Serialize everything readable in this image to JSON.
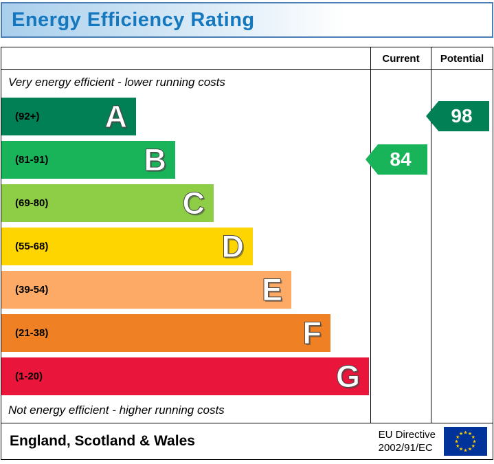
{
  "header": {
    "title": "Energy Efficiency Rating"
  },
  "table": {
    "current_label": "Current",
    "potential_label": "Potential",
    "top_note": "Very energy efficient - lower running costs",
    "bottom_note": "Not energy efficient - higher running costs"
  },
  "bands": [
    {
      "letter": "A",
      "range": "(92+)",
      "color": "#008054"
    },
    {
      "letter": "B",
      "range": "(81-91)",
      "color": "#19b459"
    },
    {
      "letter": "C",
      "range": "(69-80)",
      "color": "#8dce46"
    },
    {
      "letter": "D",
      "range": "(55-68)",
      "color": "#ffd500"
    },
    {
      "letter": "E",
      "range": "(39-54)",
      "color": "#fcaa65"
    },
    {
      "letter": "F",
      "range": "(21-38)",
      "color": "#ef8023"
    },
    {
      "letter": "G",
      "range": "(1-20)",
      "color": "#e9153b"
    }
  ],
  "current": {
    "value": "84",
    "band_index": 1,
    "color": "#19b459"
  },
  "potential": {
    "value": "98",
    "band_index": 0,
    "color": "#008054"
  },
  "footer": {
    "region": "England, Scotland & Wales",
    "eu_directive_line1": "EU Directive",
    "eu_directive_line2": "2002/91/EC"
  },
  "colors": {
    "title_text": "#1578be",
    "title_bg_left": "#a9cfec",
    "flag_blue": "#003399",
    "flag_star": "#ffcc00"
  },
  "chart_data": {
    "type": "bar",
    "title": "Energy Efficiency Rating",
    "categories": [
      "A",
      "B",
      "C",
      "D",
      "E",
      "F",
      "G"
    ],
    "band_ranges": [
      "92+",
      "81-91",
      "69-80",
      "55-68",
      "39-54",
      "21-38",
      "1-20"
    ],
    "band_colors": [
      "#008054",
      "#19b459",
      "#8dce46",
      "#ffd500",
      "#fcaa65",
      "#ef8023",
      "#e9153b"
    ],
    "series": [
      {
        "name": "Current",
        "value": 84,
        "band": "B"
      },
      {
        "name": "Potential",
        "value": 98,
        "band": "A"
      }
    ],
    "annotations": [
      "Very energy efficient - lower running costs",
      "Not energy efficient - higher running costs"
    ],
    "footer_text": "England, Scotland & Wales — EU Directive 2002/91/EC",
    "value_range": [
      1,
      100
    ]
  }
}
